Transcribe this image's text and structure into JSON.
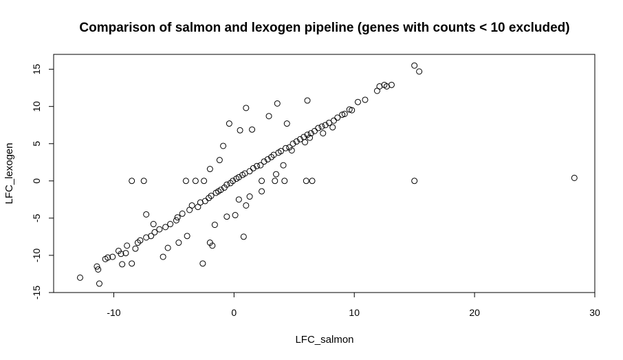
{
  "chart_data": {
    "type": "scatter",
    "title": "Comparison of salmon and lexogen pipeline (genes with counts < 10 excluded)",
    "xlabel": "LFC_salmon",
    "ylabel": "LFC_lexogen",
    "xlim": [
      -15.0,
      30.0
    ],
    "ylim": [
      -15.0,
      17.0
    ],
    "xticks": [
      -10,
      0,
      10,
      20,
      30
    ],
    "yticks": [
      -15,
      -10,
      -5,
      0,
      5,
      10,
      15
    ],
    "grid": false,
    "legend": "none",
    "marker": "open-circle",
    "marker_color": "#000000",
    "series": [
      {
        "points": [
          [
            15,
            15.5
          ],
          [
            15.4,
            14.7
          ],
          [
            13.1,
            12.9
          ],
          [
            12.5,
            12.9
          ],
          [
            12.1,
            12.7
          ],
          [
            10.9,
            10.9
          ],
          [
            12.7,
            12.7
          ],
          [
            11.9,
            12.1
          ],
          [
            28.3,
            0.4
          ],
          [
            15.0,
            0.0
          ],
          [
            6.5,
            0.0
          ],
          [
            6.1,
            10.8
          ],
          [
            3.6,
            10.4
          ],
          [
            1.0,
            9.8
          ],
          [
            -0.4,
            7.7
          ],
          [
            4.4,
            7.7
          ],
          [
            -8.5,
            0.0
          ],
          [
            -7.5,
            0.0
          ],
          [
            -12.8,
            -13.0
          ],
          [
            -11.2,
            -13.8
          ],
          [
            -11.3,
            -11.9
          ],
          [
            -11.4,
            -11.5
          ],
          [
            -2.6,
            -11.1
          ],
          [
            -8.5,
            -11.1
          ],
          [
            -9.3,
            -11.2
          ],
          [
            -5.9,
            -10.2
          ],
          [
            -2.0,
            -8.3
          ],
          [
            -1.8,
            -8.7
          ],
          [
            0.8,
            -7.5
          ],
          [
            -10.7,
            -10.5
          ],
          [
            -10.5,
            -10.3
          ],
          [
            -9.4,
            -9.8
          ],
          [
            -8.9,
            -8.7
          ],
          [
            -8.0,
            -8.3
          ],
          [
            -7.3,
            -7.6
          ],
          [
            -6.6,
            -6.9
          ],
          [
            -5.7,
            -6.2
          ],
          [
            -4.8,
            -5.3
          ],
          [
            -4.3,
            -4.4
          ],
          [
            -3.7,
            -3.9
          ],
          [
            -3.0,
            -3.5
          ],
          [
            -2.4,
            -2.7
          ],
          [
            -1.9,
            -2.0
          ],
          [
            -1.3,
            -1.4
          ],
          [
            -0.8,
            -0.9
          ],
          [
            -0.3,
            -0.3
          ],
          [
            0.2,
            0.3
          ],
          [
            0.7,
            0.8
          ],
          [
            1.3,
            1.3
          ],
          [
            1.9,
            2.0
          ],
          [
            2.5,
            2.6
          ],
          [
            3.1,
            3.2
          ],
          [
            3.7,
            3.8
          ],
          [
            4.3,
            4.4
          ],
          [
            4.9,
            5.0
          ],
          [
            5.5,
            5.6
          ],
          [
            6.1,
            6.2
          ],
          [
            6.7,
            6.7
          ],
          [
            7.3,
            7.3
          ],
          [
            7.9,
            7.8
          ],
          [
            8.6,
            8.5
          ],
          [
            9.2,
            9.0
          ],
          [
            9.8,
            9.5
          ],
          [
            10.3,
            10.6
          ],
          [
            -4.0,
            0.0
          ],
          [
            -3.2,
            0.0
          ],
          [
            -2.5,
            0.0
          ],
          [
            2.3,
            0.0
          ],
          [
            3.4,
            0.0
          ],
          [
            4.2,
            0.0
          ],
          [
            6.0,
            0.0
          ],
          [
            -2.0,
            1.6
          ],
          [
            -0.6,
            -4.8
          ],
          [
            1.0,
            -3.3
          ],
          [
            0.4,
            -2.5
          ],
          [
            -1.2,
            2.8
          ],
          [
            -0.9,
            4.7
          ],
          [
            0.5,
            6.8
          ],
          [
            1.5,
            6.9
          ],
          [
            2.9,
            8.7
          ],
          [
            -7.3,
            -4.5
          ],
          [
            -6.7,
            -5.8
          ],
          [
            -5.5,
            -9.0
          ],
          [
            -4.6,
            -8.3
          ],
          [
            -3.9,
            -7.4
          ],
          [
            -1.6,
            -5.9
          ],
          [
            0.1,
            -4.6
          ],
          [
            1.3,
            -2.1
          ],
          [
            2.3,
            -1.4
          ],
          [
            3.5,
            0.9
          ],
          [
            4.1,
            2.1
          ],
          [
            4.8,
            4.1
          ],
          [
            5.9,
            5.2
          ],
          [
            6.3,
            5.8
          ],
          [
            7.4,
            6.4
          ],
          [
            8.2,
            7.2
          ],
          [
            -8.2,
            -9.1
          ],
          [
            -7.8,
            -8.0
          ],
          [
            -6.9,
            -7.4
          ],
          [
            -6.2,
            -6.5
          ],
          [
            -5.3,
            -5.8
          ],
          [
            -4.7,
            -4.9
          ],
          [
            -3.5,
            -3.3
          ],
          [
            -2.8,
            -2.9
          ],
          [
            -2.1,
            -2.3
          ],
          [
            -1.5,
            -1.6
          ],
          [
            -1.1,
            -1.2
          ],
          [
            -0.6,
            -0.5
          ],
          [
            -0.1,
            0.0
          ],
          [
            0.4,
            0.5
          ],
          [
            0.9,
            1.0
          ],
          [
            1.6,
            1.7
          ],
          [
            2.2,
            2.1
          ],
          [
            2.8,
            2.9
          ],
          [
            3.3,
            3.5
          ],
          [
            3.9,
            4.0
          ],
          [
            4.6,
            4.5
          ],
          [
            5.2,
            5.3
          ],
          [
            5.8,
            5.9
          ],
          [
            6.4,
            6.4
          ],
          [
            7.0,
            7.1
          ],
          [
            7.6,
            7.5
          ],
          [
            8.3,
            8.1
          ],
          [
            9.0,
            8.9
          ],
          [
            9.6,
            9.6
          ],
          [
            -9.6,
            -9.4
          ],
          [
            -10.1,
            -10.2
          ],
          [
            -9.0,
            -9.7
          ]
        ]
      }
    ]
  }
}
